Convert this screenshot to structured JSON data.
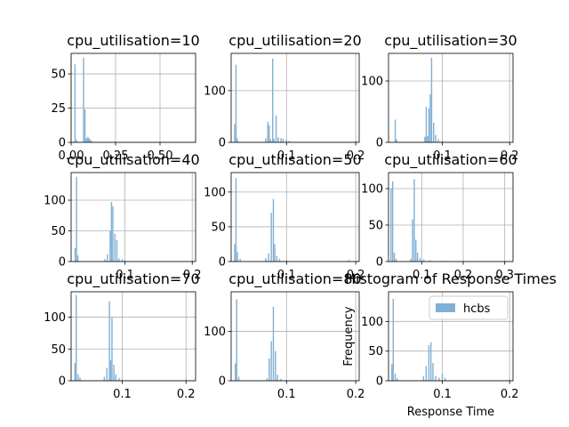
{
  "chart_data": {
    "type": "bar",
    "grid": true,
    "bar_color": "#7fb0d6",
    "panels": [
      {
        "title": "cpu_utilisation=10",
        "xlim": [
          0.0,
          0.7
        ],
        "ylim": [
          0,
          65
        ],
        "xticks": [
          0.0,
          0.25,
          0.5
        ],
        "xtick_labels": [
          "0.00",
          "0.25",
          "0.50"
        ],
        "yticks": [
          0,
          25,
          50
        ],
        "ytick_labels": [
          "0",
          "25",
          "50"
        ],
        "bins": [
          [
            0.022,
            57
          ],
          [
            0.03,
            2
          ],
          [
            0.07,
            62
          ],
          [
            0.078,
            24
          ],
          [
            0.086,
            3
          ],
          [
            0.094,
            4
          ],
          [
            0.1,
            3
          ],
          [
            0.108,
            2
          ],
          [
            0.115,
            1
          ]
        ]
      },
      {
        "title": "cpu_utilisation=20",
        "xlim": [
          0.02,
          0.205
        ],
        "ylim": [
          0,
          172
        ],
        "xticks": [
          0.1,
          0.2
        ],
        "xtick_labels": [
          "0.1",
          "0.2"
        ],
        "yticks": [
          0,
          100
        ],
        "ytick_labels": [
          "0",
          "100"
        ],
        "bins": [
          [
            0.025,
            35
          ],
          [
            0.027,
            150
          ],
          [
            0.029,
            8
          ],
          [
            0.07,
            8
          ],
          [
            0.073,
            40
          ],
          [
            0.075,
            33
          ],
          [
            0.077,
            6
          ],
          [
            0.08,
            162
          ],
          [
            0.082,
            7
          ],
          [
            0.085,
            52
          ],
          [
            0.088,
            10
          ],
          [
            0.092,
            8
          ],
          [
            0.095,
            7
          ],
          [
            0.1,
            5
          ],
          [
            0.104,
            3
          ],
          [
            0.2,
            3
          ]
        ]
      },
      {
        "title": "cpu_utilisation=30",
        "xlim": [
          0.02,
          0.205
        ],
        "ylim": [
          0,
          145
        ],
        "xticks": [
          0.1,
          0.2
        ],
        "xtick_labels": [
          "0.1",
          "0.2"
        ],
        "yticks": [
          0,
          100
        ],
        "ytick_labels": [
          "0",
          "100"
        ],
        "bins": [
          [
            0.03,
            37
          ],
          [
            0.032,
            5
          ],
          [
            0.074,
            9
          ],
          [
            0.076,
            58
          ],
          [
            0.078,
            10
          ],
          [
            0.08,
            55
          ],
          [
            0.082,
            78
          ],
          [
            0.084,
            138
          ],
          [
            0.087,
            32
          ],
          [
            0.09,
            12
          ],
          [
            0.094,
            5
          ],
          [
            0.1,
            3
          ]
        ]
      },
      {
        "title": "cpu_utilisation=40",
        "xlim": [
          0.02,
          0.205
        ],
        "ylim": [
          0,
          145
        ],
        "xticks": [
          0.1,
          0.2
        ],
        "xtick_labels": [
          "0.1",
          "0.2"
        ],
        "yticks": [
          0,
          50,
          100
        ],
        "ytick_labels": [
          "0",
          "50",
          "100"
        ],
        "bins": [
          [
            0.026,
            22
          ],
          [
            0.028,
            138
          ],
          [
            0.03,
            10
          ],
          [
            0.07,
            4
          ],
          [
            0.074,
            12
          ],
          [
            0.078,
            50
          ],
          [
            0.08,
            97
          ],
          [
            0.082,
            90
          ],
          [
            0.085,
            45
          ],
          [
            0.088,
            35
          ],
          [
            0.091,
            5
          ],
          [
            0.096,
            4
          ],
          [
            0.1,
            2
          ],
          [
            0.2,
            2
          ]
        ]
      },
      {
        "title": "cpu_utilisation=50",
        "xlim": [
          0.02,
          0.205
        ],
        "ylim": [
          0,
          128
        ],
        "xticks": [
          0.1,
          0.2
        ],
        "xtick_labels": [
          "0.1",
          "0.2"
        ],
        "yticks": [
          0,
          50,
          100
        ],
        "ytick_labels": [
          "0",
          "50",
          "100"
        ],
        "bins": [
          [
            0.025,
            25
          ],
          [
            0.027,
            120
          ],
          [
            0.029,
            14
          ],
          [
            0.033,
            4
          ],
          [
            0.07,
            5
          ],
          [
            0.074,
            12
          ],
          [
            0.078,
            70
          ],
          [
            0.081,
            90
          ],
          [
            0.083,
            25
          ],
          [
            0.086,
            8
          ],
          [
            0.09,
            4
          ],
          [
            0.1,
            2
          ],
          [
            0.19,
            2
          ]
        ]
      },
      {
        "title": "cpu_utilisation=60",
        "xlim": [
          0.02,
          0.32
        ],
        "ylim": [
          0,
          122
        ],
        "xticks": [
          0.1,
          0.2,
          0.3
        ],
        "xtick_labels": [
          "0.1",
          "0.2",
          "0.3"
        ],
        "yticks": [
          0,
          50,
          100
        ],
        "ytick_labels": [
          "0",
          "50",
          "100"
        ],
        "bins": [
          [
            0.026,
            100
          ],
          [
            0.03,
            110
          ],
          [
            0.034,
            12
          ],
          [
            0.038,
            4
          ],
          [
            0.074,
            4
          ],
          [
            0.078,
            58
          ],
          [
            0.082,
            113
          ],
          [
            0.086,
            30
          ],
          [
            0.09,
            12
          ],
          [
            0.096,
            5
          ],
          [
            0.105,
            3
          ],
          [
            0.12,
            2
          ],
          [
            0.15,
            1
          ],
          [
            0.3,
            1
          ]
        ]
      },
      {
        "title": "cpu_utilisation=70",
        "xlim": [
          0.02,
          0.215
        ],
        "ylim": [
          0,
          140
        ],
        "xticks": [
          0.1,
          0.2
        ],
        "xtick_labels": [
          "0.1",
          "0.2"
        ],
        "yticks": [
          0,
          50,
          100
        ],
        "ytick_labels": [
          "0",
          "50",
          "100"
        ],
        "bins": [
          [
            0.026,
            28
          ],
          [
            0.028,
            135
          ],
          [
            0.031,
            10
          ],
          [
            0.034,
            5
          ],
          [
            0.072,
            6
          ],
          [
            0.076,
            20
          ],
          [
            0.08,
            125
          ],
          [
            0.082,
            32
          ],
          [
            0.084,
            100
          ],
          [
            0.087,
            25
          ],
          [
            0.09,
            10
          ],
          [
            0.095,
            4
          ],
          [
            0.1,
            2
          ],
          [
            0.2,
            2
          ]
        ]
      },
      {
        "title": "cpu_utilisation=80",
        "xlim": [
          0.02,
          0.205
        ],
        "ylim": [
          0,
          180
        ],
        "xticks": [
          0.1,
          0.2
        ],
        "xtick_labels": [
          "0.1",
          "0.2"
        ],
        "yticks": [
          0,
          100
        ],
        "ytick_labels": [
          "0",
          "100"
        ],
        "bins": [
          [
            0.026,
            35
          ],
          [
            0.028,
            165
          ],
          [
            0.031,
            8
          ],
          [
            0.072,
            5
          ],
          [
            0.075,
            45
          ],
          [
            0.078,
            80
          ],
          [
            0.081,
            150
          ],
          [
            0.084,
            60
          ],
          [
            0.087,
            12
          ],
          [
            0.092,
            4
          ],
          [
            0.1,
            2
          ],
          [
            0.18,
            1
          ]
        ]
      },
      {
        "title": "Histogram of Response Times",
        "xlim": [
          0.02,
          0.205
        ],
        "ylim": [
          0,
          150
        ],
        "xticks": [
          0.1,
          0.2
        ],
        "xtick_labels": [
          "0.1",
          "0.2"
        ],
        "yticks": [
          0,
          50,
          100
        ],
        "ytick_labels": [
          "0",
          "50",
          "100"
        ],
        "xlabel": "Response Time",
        "ylabel": "Frequency",
        "legend": "hcbs",
        "legend_loc": "upper right",
        "bins": [
          [
            0.025,
            28
          ],
          [
            0.027,
            138
          ],
          [
            0.03,
            12
          ],
          [
            0.033,
            4
          ],
          [
            0.072,
            8
          ],
          [
            0.076,
            25
          ],
          [
            0.08,
            60
          ],
          [
            0.083,
            65
          ],
          [
            0.086,
            30
          ],
          [
            0.09,
            8
          ],
          [
            0.095,
            5
          ],
          [
            0.1,
            12
          ],
          [
            0.104,
            5
          ],
          [
            0.2,
            2
          ]
        ]
      }
    ]
  }
}
